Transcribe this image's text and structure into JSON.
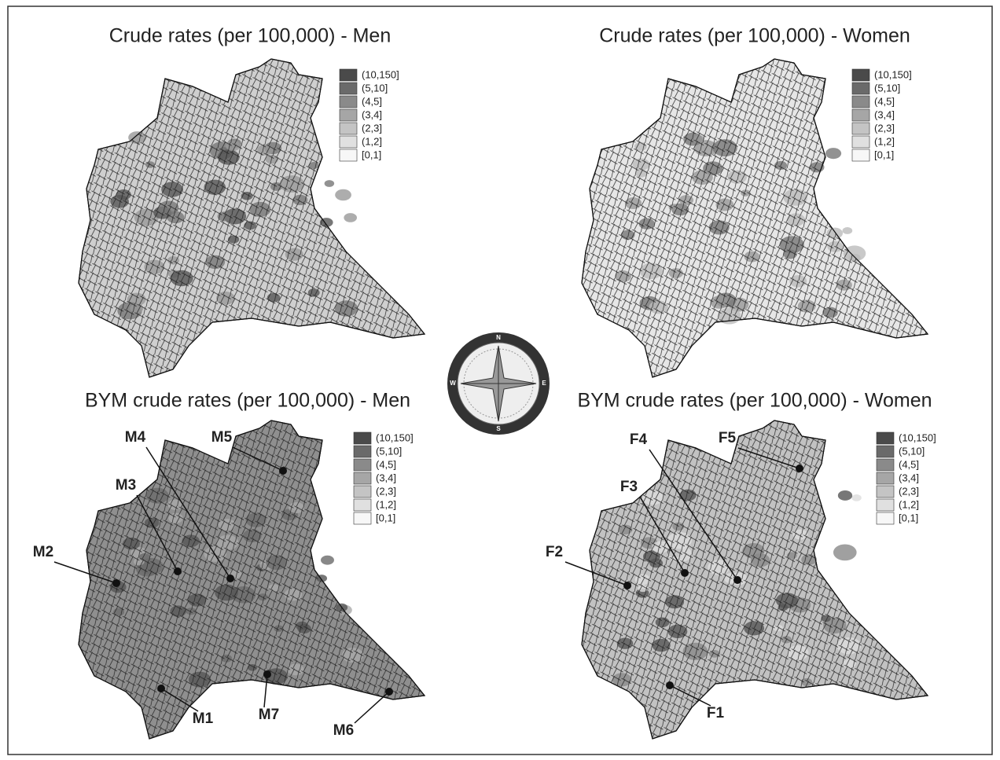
{
  "panels": [
    {
      "title": "Crude rates (per 100,000) - Men",
      "legend": [
        {
          "label": "(10,150]",
          "color": "#4a4a4a"
        },
        {
          "label": "(5,10]",
          "color": "#6a6a6a"
        },
        {
          "label": "(4,5]",
          "color": "#8a8a8a"
        },
        {
          "label": "(3,4]",
          "color": "#a6a6a6"
        },
        {
          "label": "(2,3]",
          "color": "#c4c4c4"
        },
        {
          "label": "(1,2]",
          "color": "#e0e0e0"
        },
        {
          "label": "[0,1]",
          "color": "#f7f7f7"
        }
      ],
      "points": []
    },
    {
      "title": "Crude rates (per 100,000) - Women",
      "legend": [
        {
          "label": "(10,150]",
          "color": "#4a4a4a"
        },
        {
          "label": "(5,10]",
          "color": "#6a6a6a"
        },
        {
          "label": "(4,5]",
          "color": "#8a8a8a"
        },
        {
          "label": "(3,4]",
          "color": "#a6a6a6"
        },
        {
          "label": "(2,3]",
          "color": "#c4c4c4"
        },
        {
          "label": "(1,2]",
          "color": "#e0e0e0"
        },
        {
          "label": "[0,1]",
          "color": "#f7f7f7"
        }
      ],
      "points": []
    },
    {
      "title": "BYM crude rates (per 100,000) - Men",
      "legend": [
        {
          "label": "(10,150]",
          "color": "#4a4a4a"
        },
        {
          "label": "(5,10]",
          "color": "#6a6a6a"
        },
        {
          "label": "(4,5]",
          "color": "#8a8a8a"
        },
        {
          "label": "(3,4]",
          "color": "#a6a6a6"
        },
        {
          "label": "(2,3]",
          "color": "#c4c4c4"
        },
        {
          "label": "(1,2]",
          "color": "#e0e0e0"
        },
        {
          "label": "[0,1]",
          "color": "#f7f7f7"
        }
      ],
      "points": [
        "M1",
        "M2",
        "M3",
        "M4",
        "M5",
        "M6",
        "M7"
      ]
    },
    {
      "title": "BYM crude rates (per 100,000) - Women",
      "legend": [
        {
          "label": "(10,150]",
          "color": "#4a4a4a"
        },
        {
          "label": "(5,10]",
          "color": "#6a6a6a"
        },
        {
          "label": "(4,5]",
          "color": "#8a8a8a"
        },
        {
          "label": "(3,4]",
          "color": "#a6a6a6"
        },
        {
          "label": "(2,3]",
          "color": "#c4c4c4"
        },
        {
          "label": "(1,2]",
          "color": "#e0e0e0"
        },
        {
          "label": "[0,1]",
          "color": "#f7f7f7"
        }
      ],
      "points": [
        "F1",
        "F2",
        "F3",
        "F4",
        "F5"
      ]
    }
  ],
  "compass": [
    "N",
    "E",
    "S",
    "W"
  ]
}
